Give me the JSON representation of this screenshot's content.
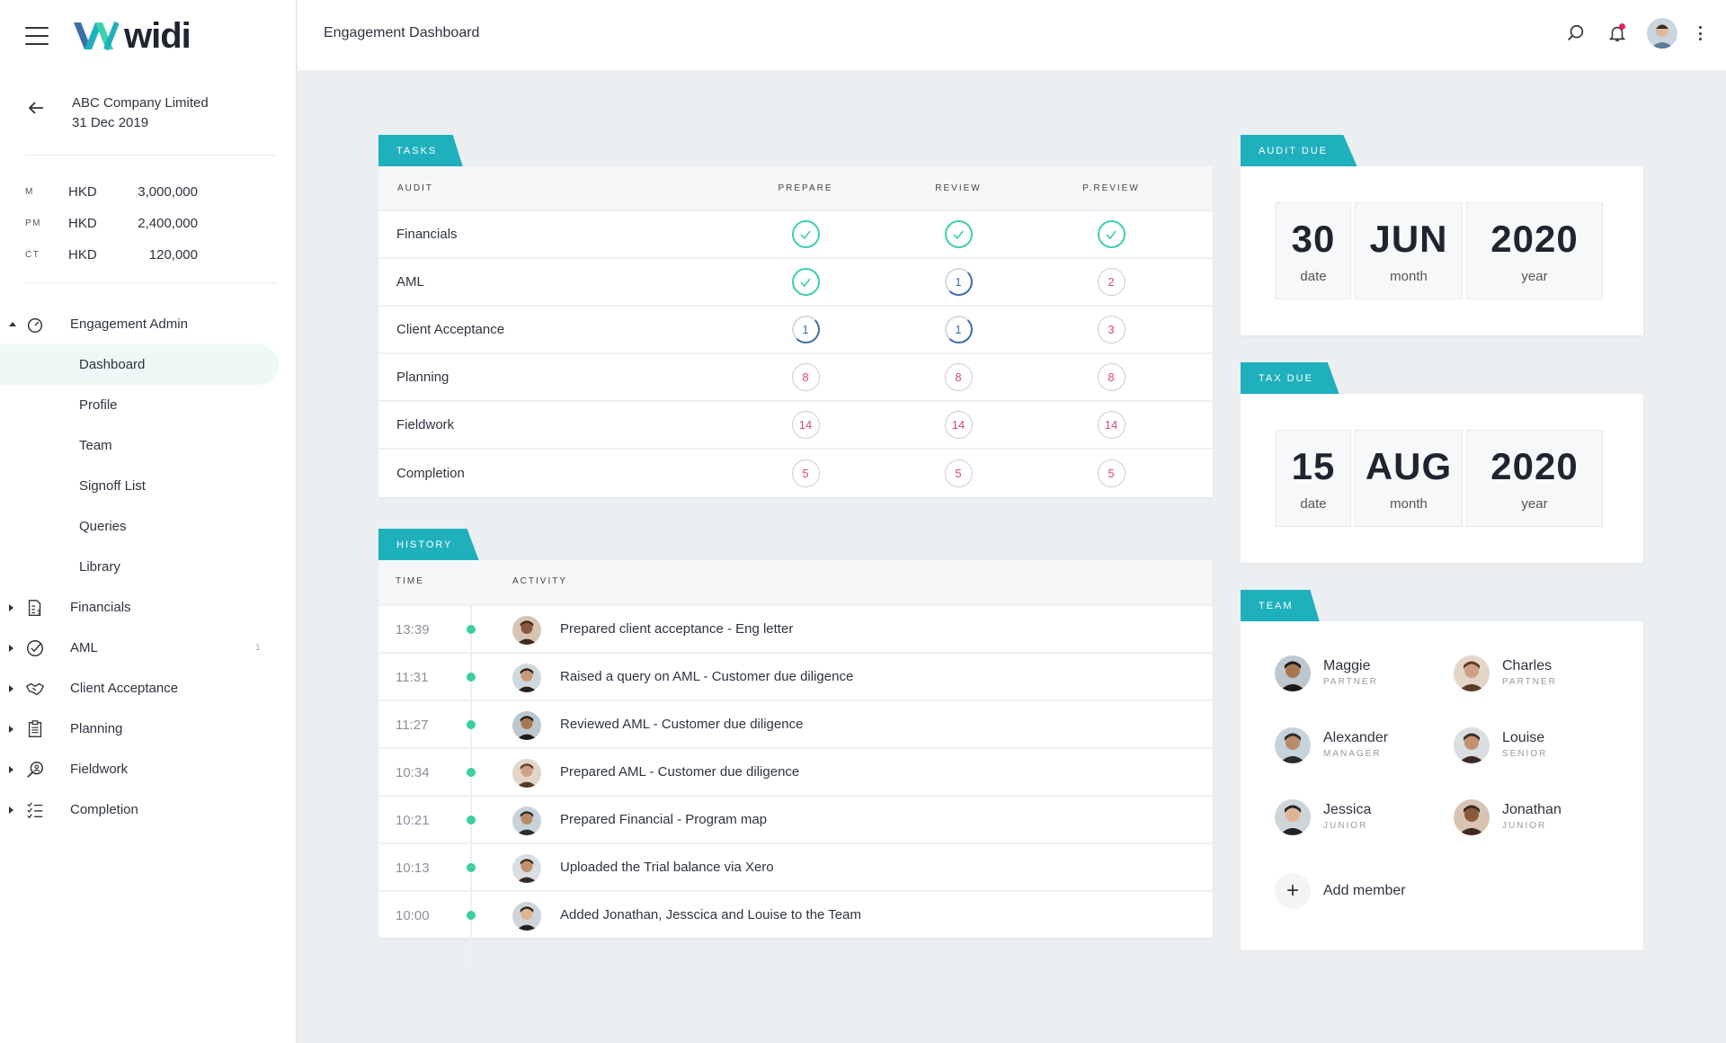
{
  "brand": {
    "logo_text": "widi"
  },
  "engagement": {
    "company": "ABC Company Limited",
    "period": "31 Dec 2019"
  },
  "amounts": [
    {
      "code": "M",
      "currency": "HKD",
      "value": "3,000,000"
    },
    {
      "code": "PM",
      "currency": "HKD",
      "value": "2,400,000"
    },
    {
      "code": "CT",
      "currency": "HKD",
      "value": "120,000"
    }
  ],
  "nav": {
    "engagement_admin": "Engagement Admin",
    "sub_items": [
      "Dashboard",
      "Profile",
      "Team",
      "Signoff List",
      "Queries",
      "Library"
    ],
    "sections": [
      {
        "label": "Financials",
        "icon": "financials-icon",
        "badge": ""
      },
      {
        "label": "AML",
        "icon": "check-circle-icon",
        "badge": "1"
      },
      {
        "label": "Client Acceptance",
        "icon": "handshake-icon",
        "badge": ""
      },
      {
        "label": "Planning",
        "icon": "clipboard-icon",
        "badge": ""
      },
      {
        "label": "Fieldwork",
        "icon": "search-person-icon",
        "badge": ""
      },
      {
        "label": "Completion",
        "icon": "checklist-icon",
        "badge": ""
      }
    ]
  },
  "header": {
    "title": "Engagement Dashboard"
  },
  "tasks": {
    "tab": "TASKS",
    "columns": [
      "AUDIT",
      "PREPARE",
      "REVIEW",
      "P.REVIEW"
    ],
    "rows": [
      {
        "name": "Financials",
        "prepare": "done",
        "review": "done",
        "preview": "done"
      },
      {
        "name": "AML",
        "prepare": "done",
        "review": "1",
        "preview": "2"
      },
      {
        "name": "Client Acceptance",
        "prepare": "1",
        "review": "1",
        "preview": "3"
      },
      {
        "name": "Planning",
        "prepare": "8",
        "review": "8",
        "preview": "8"
      },
      {
        "name": "Fieldwork",
        "prepare": "14",
        "review": "14",
        "preview": "14"
      },
      {
        "name": "Completion",
        "prepare": "5",
        "review": "5",
        "preview": "5"
      }
    ]
  },
  "history": {
    "tab": "HISTORY",
    "col_time": "TIME",
    "col_activity": "ACTIVITY",
    "rows": [
      {
        "time": "13:39",
        "activity": "Prepared client acceptance - Eng letter"
      },
      {
        "time": "11:31",
        "activity": "Raised a query on AML - Customer due diligence"
      },
      {
        "time": "11:27",
        "activity": "Reviewed AML - Customer due diligence"
      },
      {
        "time": "10:34",
        "activity": "Prepared AML - Customer due diligence"
      },
      {
        "time": "10:21",
        "activity": "Prepared Financial - Program map"
      },
      {
        "time": "10:13",
        "activity": "Uploaded the Trial balance via Xero"
      },
      {
        "time": "10:00",
        "activity": "Added Jonathan, Jesscica and Louise to the Team"
      }
    ]
  },
  "audit_due": {
    "tab": "AUDIT DUE",
    "date": "30",
    "month": "JUN",
    "year": "2020",
    "date_cap": "date",
    "month_cap": "month",
    "year_cap": "year"
  },
  "tax_due": {
    "tab": "TAX DUE",
    "date": "15",
    "month": "AUG",
    "year": "2020",
    "date_cap": "date",
    "month_cap": "month",
    "year_cap": "year"
  },
  "team": {
    "tab": "TEAM",
    "members": [
      {
        "name": "Maggie",
        "role": "PARTNER"
      },
      {
        "name": "Charles",
        "role": "PARTNER"
      },
      {
        "name": "Alexander",
        "role": "MANAGER"
      },
      {
        "name": "Louise",
        "role": "SENIOR"
      },
      {
        "name": "Jessica",
        "role": "JUNIOR"
      },
      {
        "name": "Jonathan",
        "role": "JUNIOR"
      }
    ],
    "add_label": "Add member"
  },
  "colors": {
    "accent": "#1fb0bd",
    "done": "#3ccfb0",
    "count": "#d94a6e",
    "progress": "#3e6ea8",
    "timeline_dot": "#3ccfa0"
  }
}
